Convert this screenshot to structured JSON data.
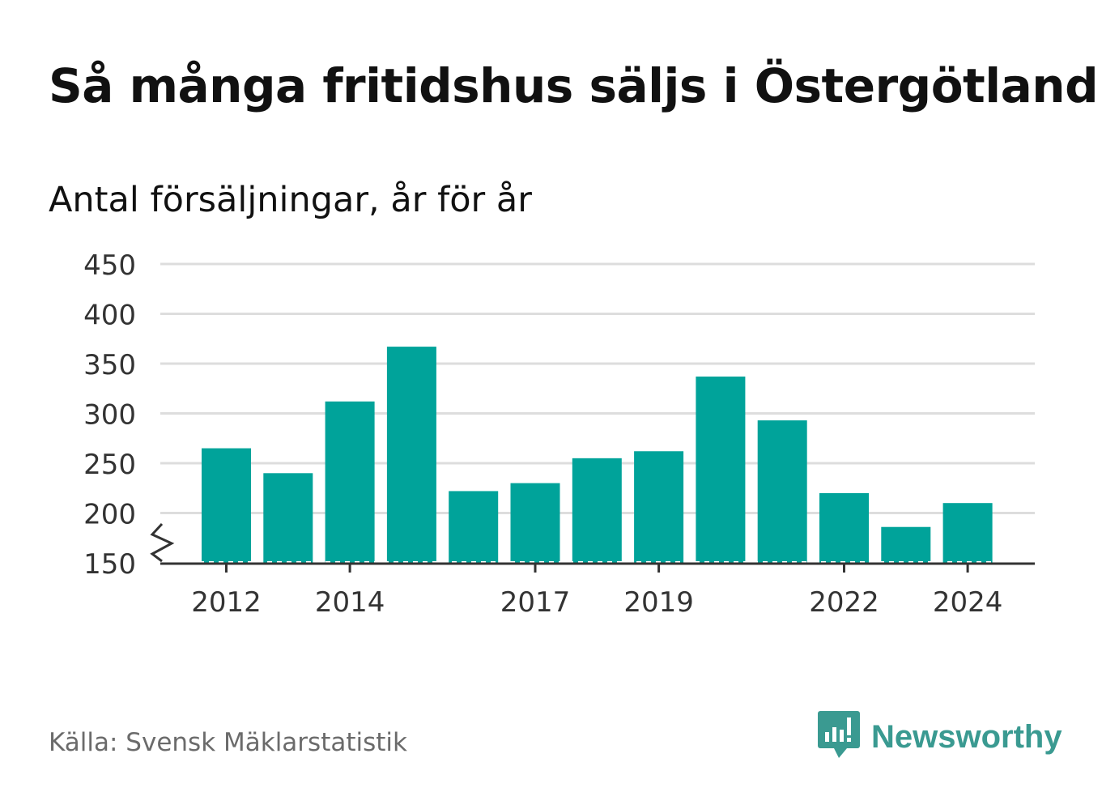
{
  "header": {
    "title": "Så många fritidshus säljs i Östergötland",
    "subtitle": "Antal försäljningar, år för år"
  },
  "footer": {
    "source": "Källa: Svensk Mäklarstatistik",
    "brand": "Newsworthy",
    "brand_icon": "bar-chart-speech-icon"
  },
  "colors": {
    "bar": "#00a39a",
    "grid": "#dddddd",
    "axis": "#333333",
    "brand": "#3a9a91"
  },
  "chart_data": {
    "type": "bar",
    "categories": [
      "2012",
      "2013",
      "2014",
      "2015",
      "2016",
      "2017",
      "2018",
      "2019",
      "2020",
      "2021",
      "2022",
      "2023",
      "2024"
    ],
    "values": [
      265,
      240,
      312,
      367,
      222,
      230,
      255,
      262,
      337,
      293,
      220,
      186,
      210
    ],
    "x_tick_labels": [
      "2012",
      "2014",
      "2017",
      "2019",
      "2022",
      "2024"
    ],
    "y_ticks": [
      150,
      200,
      250,
      300,
      350,
      400,
      450
    ],
    "ylim": [
      150,
      450
    ],
    "axis_break": true,
    "grid": true,
    "legend": "none"
  }
}
